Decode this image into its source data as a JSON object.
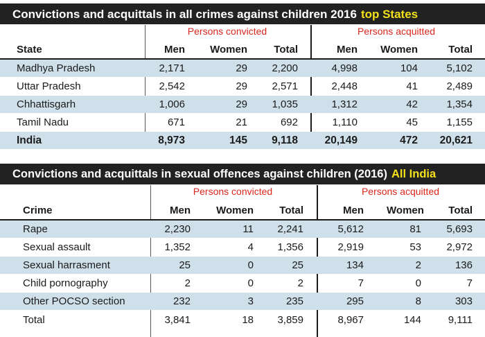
{
  "table1": {
    "title": "Convictions and acquittals in all crimes against children 2016",
    "title_highlight": "top States",
    "group_convicted": "Persons convicted",
    "group_acquitted": "Persons acquitted",
    "headers": [
      "State",
      "Men",
      "Women",
      "Total",
      "Men",
      "Women",
      "Total"
    ],
    "rows": [
      [
        "Madhya Pradesh",
        "2,171",
        "29",
        "2,200",
        "4,998",
        "104",
        "5,102"
      ],
      [
        "Uttar Pradesh",
        "2,542",
        "29",
        "2,571",
        "2,448",
        "41",
        "2,489"
      ],
      [
        "Chhattisgarh",
        "1,006",
        "29",
        "1,035",
        "1,312",
        "42",
        "1,354"
      ],
      [
        "Tamil Nadu",
        "671",
        "21",
        "692",
        "1,110",
        "45",
        "1,155"
      ]
    ],
    "total": [
      "India",
      "8,973",
      "145",
      "9,118",
      "20,149",
      "472",
      "20,621"
    ]
  },
  "table2": {
    "title": "Convictions and acquittals in sexual offences against children (2016)",
    "title_highlight": "All India",
    "group_convicted": "Persons convicted",
    "group_acquitted": "Persons acquitted",
    "headers": [
      "Crime",
      "Men",
      "Women",
      "Total",
      "Men",
      "Women",
      "Total"
    ],
    "rows": [
      [
        "Rape",
        "2,230",
        "11",
        "2,241",
        "5,612",
        "81",
        "5,693"
      ],
      [
        "Sexual assault",
        "1,352",
        "4",
        "1,356",
        "2,919",
        "53",
        "2,972"
      ],
      [
        "Sexual harrasment",
        "25",
        "0",
        "25",
        "134",
        "2",
        "136"
      ],
      [
        "Child pornography",
        "2",
        "0",
        "2",
        "7",
        "0",
        "7"
      ],
      [
        "Other POCSO section",
        "232",
        "3",
        "235",
        "295",
        "8",
        "303"
      ]
    ],
    "total": [
      "Total",
      "3,841",
      "18",
      "3,859",
      "8,967",
      "144",
      "9,111"
    ]
  },
  "colors": {
    "title_bg": "#222222",
    "title_highlight": "#f2e01a",
    "group_label": "#d9261c",
    "row_shade": "#cfe0ea"
  }
}
